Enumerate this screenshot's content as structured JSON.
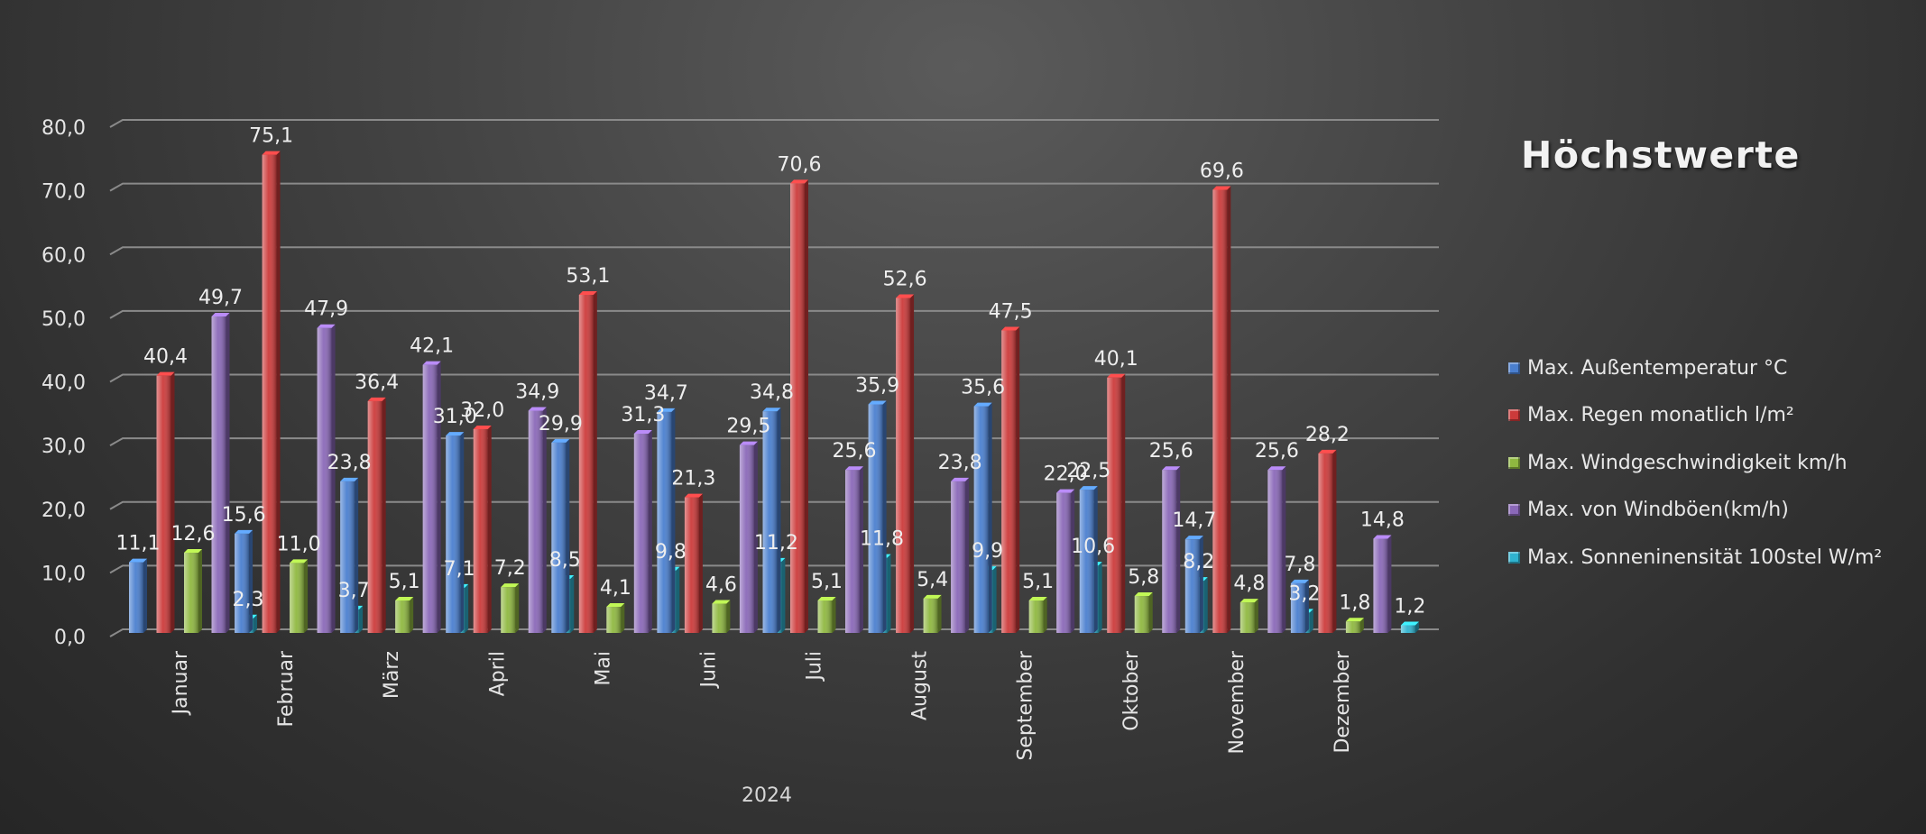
{
  "chart_data": {
    "type": "bar",
    "title": "Höchstwerte",
    "xlabel": "2024",
    "ylabel": "",
    "ylim": [
      0,
      80
    ],
    "yticks": [
      "0,0",
      "10,0",
      "20,0",
      "30,0",
      "40,0",
      "50,0",
      "60,0",
      "70,0",
      "80,0"
    ],
    "grid": true,
    "legend_position": "right",
    "categories": [
      "Januar",
      "Februar",
      "März",
      "April",
      "Mai",
      "Juni",
      "Juli",
      "August",
      "September",
      "Oktober",
      "November",
      "Dezember"
    ],
    "series": [
      {
        "name": "Max. Außentemperatur °C",
        "color": "#4a7fcf",
        "values": [
          11.1,
          15.6,
          23.8,
          31.0,
          29.9,
          34.7,
          34.8,
          35.9,
          35.6,
          22.5,
          14.7,
          7.8
        ],
        "labels": [
          "11,1",
          "15,6",
          "23,8",
          "31,0",
          "29,9",
          "34,7",
          "34,8",
          "35,9",
          "35,6",
          "22,5",
          "14,7",
          "7,8"
        ]
      },
      {
        "name": "Max. Regen monatlich l/m²",
        "color": "#cc3a3a",
        "values": [
          40.4,
          75.1,
          36.4,
          32.0,
          53.1,
          21.3,
          70.6,
          52.6,
          47.5,
          40.1,
          69.6,
          28.2
        ],
        "labels": [
          "40,4",
          "75,1",
          "36,4",
          "32,0",
          "53,1",
          "21,3",
          "70,6",
          "52,6",
          "47,5",
          "40,1",
          "69,6",
          "28,2"
        ]
      },
      {
        "name": "Max. Windgeschwindigkeit km/h",
        "color": "#8fb840",
        "values": [
          12.6,
          11.0,
          5.1,
          7.2,
          4.1,
          4.6,
          5.1,
          5.4,
          5.1,
          5.8,
          4.8,
          1.8
        ],
        "labels": [
          "12,6",
          "11,0",
          "5,1",
          "7,2",
          "4,1",
          "4,6",
          "5,1",
          "5,4",
          "5,1",
          "5,8",
          "4,8",
          "1,8"
        ]
      },
      {
        "name": "Max. von Windböen(km/h)",
        "color": "#8a68b8",
        "values": [
          49.7,
          47.9,
          42.1,
          34.9,
          31.3,
          29.5,
          25.6,
          23.8,
          22.0,
          25.6,
          25.6,
          14.8
        ],
        "labels": [
          "49,7",
          "47,9",
          "42,1",
          "34,9",
          "31,3",
          "29,5",
          "25,6",
          "23,8",
          "22,0",
          "25,6",
          "25,6",
          "14,8"
        ]
      },
      {
        "name": "Max. Sonneninensität 100stel W/m²",
        "color": "#2fb3cf",
        "values": [
          2.3,
          3.7,
          7.1,
          8.5,
          9.8,
          11.2,
          11.8,
          9.9,
          10.6,
          8.2,
          3.2,
          1.2
        ],
        "labels": [
          "2,3",
          "3,7",
          "7,1",
          "8,5",
          "9,8",
          "11,2",
          "11,8",
          "9,9",
          "10,6",
          "8,2",
          "3,2",
          "1,2"
        ]
      }
    ]
  }
}
